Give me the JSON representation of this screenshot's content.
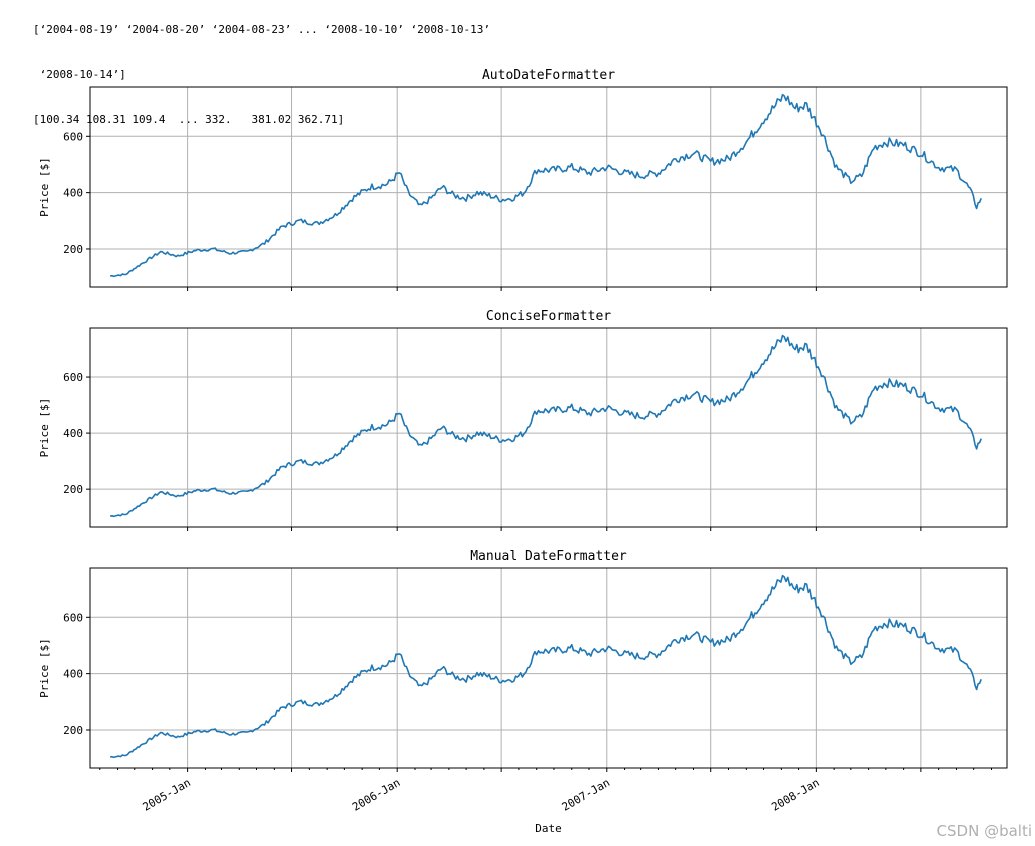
{
  "console": {
    "line1": "[‘2004-08-19’ ‘2004-08-20’ ‘2004-08-23’ ... ‘2008-10-10’ ‘2008-10-13’",
    "line2": " ‘2008-10-14’]",
    "line3": "[100.34 108.31 109.4  ... 332.   381.02 362.71]"
  },
  "watermark": "CSDN @balti",
  "chart_data": [
    {
      "type": "line",
      "title": "AutoDateFormatter",
      "ylabel": "Price [$]",
      "xlabel": "",
      "y_ticks": [
        200,
        400,
        600
      ],
      "ylim": [
        65,
        775
      ],
      "x_range": [
        "2004-07-15",
        "2008-11-28"
      ],
      "x_tick_labels_visible": false,
      "grid": true,
      "series": [
        {
          "color": "#1f77b4",
          "x": [
            "2004-08-19",
            "2004-09-15",
            "2004-10-15",
            "2004-11-15",
            "2004-12-15",
            "2005-01-15",
            "2005-02-15",
            "2005-03-15",
            "2005-04-15",
            "2005-05-15",
            "2005-06-15",
            "2005-07-15",
            "2005-08-15",
            "2005-09-15",
            "2005-10-15",
            "2005-11-15",
            "2005-12-15",
            "2006-01-05",
            "2006-01-20",
            "2006-02-10",
            "2006-03-01",
            "2006-03-20",
            "2006-04-10",
            "2006-05-01",
            "2006-05-20",
            "2006-06-10",
            "2006-07-01",
            "2006-07-20",
            "2006-08-10",
            "2006-09-01",
            "2006-10-01",
            "2006-11-01",
            "2006-12-01",
            "2007-01-01",
            "2007-02-01",
            "2007-03-01",
            "2007-04-01",
            "2007-05-01",
            "2007-06-01",
            "2007-07-01",
            "2007-08-01",
            "2007-09-01",
            "2007-10-01",
            "2007-11-06",
            "2007-11-25",
            "2007-12-15",
            "2008-01-10",
            "2008-02-05",
            "2008-03-01",
            "2008-03-20",
            "2008-04-10",
            "2008-05-01",
            "2008-06-01",
            "2008-07-01",
            "2008-08-01",
            "2008-09-01",
            "2008-09-25",
            "2008-10-06",
            "2008-10-14"
          ],
          "y": [
            104,
            110,
            150,
            190,
            175,
            195,
            200,
            185,
            190,
            220,
            280,
            300,
            290,
            320,
            380,
            420,
            430,
            470,
            400,
            350,
            380,
            420,
            390,
            380,
            400,
            390,
            375,
            380,
            400,
            480,
            480,
            490,
            470,
            490,
            470,
            460,
            470,
            520,
            540,
            510,
            520,
            580,
            660,
            745,
            700,
            710,
            620,
            490,
            440,
            460,
            560,
            580,
            570,
            540,
            490,
            480,
            410,
            350,
            380
          ]
        }
      ]
    },
    {
      "type": "line",
      "title": "ConciseFormatter",
      "ylabel": "Price [$]",
      "xlabel": "",
      "y_ticks": [
        200,
        400,
        600
      ],
      "ylim": [
        65,
        775
      ],
      "x_range": [
        "2004-07-15",
        "2008-11-28"
      ],
      "x_tick_labels_visible": false,
      "grid": true,
      "series": [
        {
          "color": "#1f77b4",
          "x": [
            "2004-08-19",
            "2004-09-15",
            "2004-10-15",
            "2004-11-15",
            "2004-12-15",
            "2005-01-15",
            "2005-02-15",
            "2005-03-15",
            "2005-04-15",
            "2005-05-15",
            "2005-06-15",
            "2005-07-15",
            "2005-08-15",
            "2005-09-15",
            "2005-10-15",
            "2005-11-15",
            "2005-12-15",
            "2006-01-05",
            "2006-01-20",
            "2006-02-10",
            "2006-03-01",
            "2006-03-20",
            "2006-04-10",
            "2006-05-01",
            "2006-05-20",
            "2006-06-10",
            "2006-07-01",
            "2006-07-20",
            "2006-08-10",
            "2006-09-01",
            "2006-10-01",
            "2006-11-01",
            "2006-12-01",
            "2007-01-01",
            "2007-02-01",
            "2007-03-01",
            "2007-04-01",
            "2007-05-01",
            "2007-06-01",
            "2007-07-01",
            "2007-08-01",
            "2007-09-01",
            "2007-10-01",
            "2007-11-06",
            "2007-11-25",
            "2007-12-15",
            "2008-01-10",
            "2008-02-05",
            "2008-03-01",
            "2008-03-20",
            "2008-04-10",
            "2008-05-01",
            "2008-06-01",
            "2008-07-01",
            "2008-08-01",
            "2008-09-01",
            "2008-09-25",
            "2008-10-06",
            "2008-10-14"
          ],
          "y": [
            104,
            110,
            150,
            190,
            175,
            195,
            200,
            185,
            190,
            220,
            280,
            300,
            290,
            320,
            380,
            420,
            430,
            470,
            400,
            350,
            380,
            420,
            390,
            380,
            400,
            390,
            375,
            380,
            400,
            480,
            480,
            490,
            470,
            490,
            470,
            460,
            470,
            520,
            540,
            510,
            520,
            580,
            660,
            745,
            700,
            710,
            620,
            490,
            440,
            460,
            560,
            580,
            570,
            540,
            490,
            480,
            410,
            350,
            380
          ]
        }
      ]
    },
    {
      "type": "line",
      "title": "Manual DateFormatter",
      "ylabel": "Price [$]",
      "xlabel": "Date",
      "y_ticks": [
        200,
        400,
        600
      ],
      "ylim": [
        65,
        775
      ],
      "x_range": [
        "2004-07-15",
        "2008-11-28"
      ],
      "x_tick_labels_visible": true,
      "x_ticks": [
        {
          "date": "2005-01-01",
          "label": "2005-Jan"
        },
        {
          "date": "2006-01-01",
          "label": "2006-Jan"
        },
        {
          "date": "2007-01-01",
          "label": "2007-Jan"
        },
        {
          "date": "2008-01-01",
          "label": "2008-Jan"
        }
      ],
      "grid": true,
      "series": [
        {
          "color": "#1f77b4",
          "x": [
            "2004-08-19",
            "2004-09-15",
            "2004-10-15",
            "2004-11-15",
            "2004-12-15",
            "2005-01-15",
            "2005-02-15",
            "2005-03-15",
            "2005-04-15",
            "2005-05-15",
            "2005-06-15",
            "2005-07-15",
            "2005-08-15",
            "2005-09-15",
            "2005-10-15",
            "2005-11-15",
            "2005-12-15",
            "2006-01-05",
            "2006-01-20",
            "2006-02-10",
            "2006-03-01",
            "2006-03-20",
            "2006-04-10",
            "2006-05-01",
            "2006-05-20",
            "2006-06-10",
            "2006-07-01",
            "2006-07-20",
            "2006-08-10",
            "2006-09-01",
            "2006-10-01",
            "2006-11-01",
            "2006-12-01",
            "2007-01-01",
            "2007-02-01",
            "2007-03-01",
            "2007-04-01",
            "2007-05-01",
            "2007-06-01",
            "2007-07-01",
            "2007-08-01",
            "2007-09-01",
            "2007-10-01",
            "2007-11-06",
            "2007-11-25",
            "2007-12-15",
            "2008-01-10",
            "2008-02-05",
            "2008-03-01",
            "2008-03-20",
            "2008-04-10",
            "2008-05-01",
            "2008-06-01",
            "2008-07-01",
            "2008-08-01",
            "2008-09-01",
            "2008-09-25",
            "2008-10-06",
            "2008-10-14"
          ],
          "y": [
            104,
            110,
            150,
            190,
            175,
            195,
            200,
            185,
            190,
            220,
            280,
            300,
            290,
            320,
            380,
            420,
            430,
            470,
            400,
            350,
            380,
            420,
            390,
            380,
            400,
            390,
            375,
            380,
            400,
            480,
            480,
            490,
            470,
            490,
            470,
            460,
            470,
            520,
            540,
            510,
            520,
            580,
            660,
            745,
            700,
            710,
            620,
            490,
            440,
            460,
            560,
            580,
            570,
            540,
            490,
            480,
            410,
            350,
            380
          ]
        }
      ]
    }
  ]
}
